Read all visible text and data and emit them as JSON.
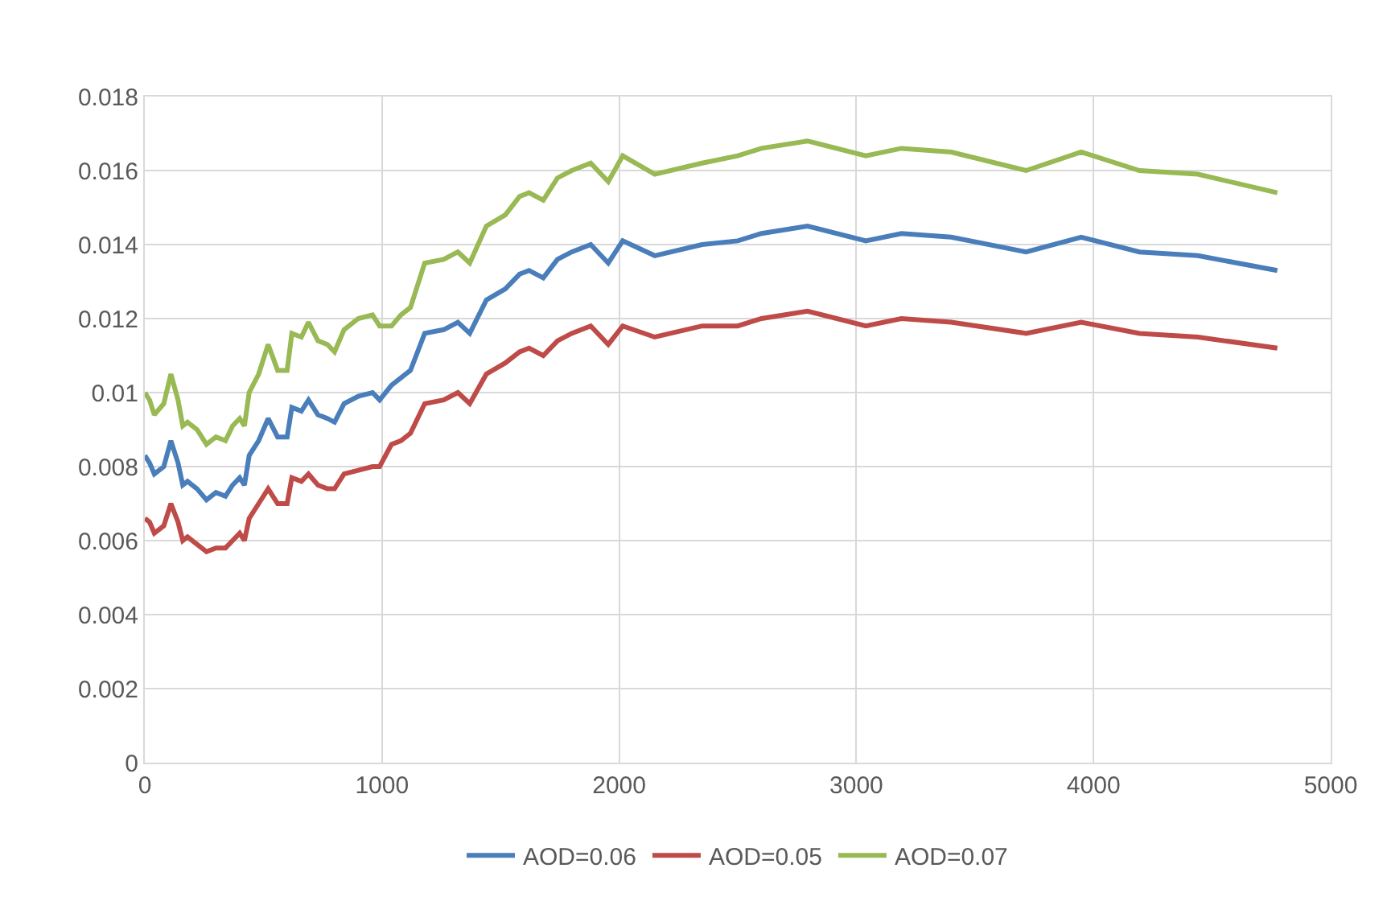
{
  "chart_data": {
    "type": "line",
    "xlim": [
      0,
      5000
    ],
    "xticks": [
      0,
      1000,
      2000,
      3000,
      4000,
      5000
    ],
    "ylim": [
      0,
      0.018
    ],
    "yticks": [
      {
        "value": 0,
        "label": "0"
      },
      {
        "value": 0.002,
        "label": "0.002"
      },
      {
        "value": 0.004,
        "label": "0.004"
      },
      {
        "value": 0.006,
        "label": "0.006"
      },
      {
        "value": 0.008,
        "label": "0.008"
      },
      {
        "value": 0.01,
        "label": "0.01"
      },
      {
        "value": 0.012,
        "label": "0.012"
      },
      {
        "value": 0.014,
        "label": "0.014"
      },
      {
        "value": 0.016,
        "label": "0.016"
      },
      {
        "value": 0.018,
        "label": "0.018"
      }
    ],
    "grid": true,
    "legend": "bottom",
    "marker": "none",
    "line_style": "solid",
    "x": [
      0,
      20,
      40,
      80,
      110,
      140,
      160,
      180,
      220,
      260,
      300,
      340,
      370,
      400,
      420,
      440,
      480,
      520,
      560,
      600,
      620,
      660,
      690,
      730,
      770,
      800,
      840,
      900,
      960,
      990,
      1040,
      1080,
      1120,
      1180,
      1260,
      1320,
      1370,
      1440,
      1520,
      1580,
      1620,
      1680,
      1740,
      1800,
      1880,
      1954,
      2015,
      2150,
      2350,
      2500,
      2600,
      2794,
      3040,
      3190,
      3400,
      3716,
      3948,
      4194,
      4440,
      4775
    ],
    "series": [
      {
        "name": "AOD=0.06",
        "color": "#4a7ebb",
        "values": [
          0.0083,
          0.0081,
          0.0078,
          0.008,
          0.0087,
          0.0081,
          0.0075,
          0.0076,
          0.0074,
          0.0071,
          0.0073,
          0.0072,
          0.0075,
          0.0077,
          0.0075,
          0.0083,
          0.0087,
          0.0093,
          0.0088,
          0.0088,
          0.0096,
          0.0095,
          0.0098,
          0.0094,
          0.0093,
          0.0092,
          0.0097,
          0.0099,
          0.01,
          0.0098,
          0.0102,
          0.0104,
          0.0106,
          0.0116,
          0.0117,
          0.0119,
          0.0116,
          0.0125,
          0.0128,
          0.0132,
          0.0133,
          0.0131,
          0.0136,
          0.0138,
          0.014,
          0.0135,
          0.0141,
          0.0137,
          0.014,
          0.0141,
          0.0143,
          0.0145,
          0.0141,
          0.0143,
          0.0142,
          0.0138,
          0.0142,
          0.0138,
          0.0137,
          0.0133
        ]
      },
      {
        "name": "AOD=0.05",
        "color": "#be4b48",
        "values": [
          0.0066,
          0.0065,
          0.0062,
          0.0064,
          0.007,
          0.0065,
          0.006,
          0.0061,
          0.0059,
          0.0057,
          0.0058,
          0.0058,
          0.006,
          0.0062,
          0.006,
          0.0066,
          0.007,
          0.0074,
          0.007,
          0.007,
          0.0077,
          0.0076,
          0.0078,
          0.0075,
          0.0074,
          0.0074,
          0.0078,
          0.0079,
          0.008,
          0.008,
          0.0086,
          0.0087,
          0.0089,
          0.0097,
          0.0098,
          0.01,
          0.0097,
          0.0105,
          0.0108,
          0.0111,
          0.0112,
          0.011,
          0.0114,
          0.0116,
          0.0118,
          0.0113,
          0.0118,
          0.0115,
          0.0118,
          0.0118,
          0.012,
          0.0122,
          0.0118,
          0.012,
          0.0119,
          0.0116,
          0.0119,
          0.0116,
          0.0115,
          0.0112
        ]
      },
      {
        "name": "AOD=0.07",
        "color": "#98b954",
        "values": [
          0.01,
          0.0098,
          0.0094,
          0.0097,
          0.0105,
          0.0098,
          0.0091,
          0.0092,
          0.009,
          0.0086,
          0.0088,
          0.0087,
          0.0091,
          0.0093,
          0.0091,
          0.01,
          0.0105,
          0.0113,
          0.0106,
          0.0106,
          0.0116,
          0.0115,
          0.0119,
          0.0114,
          0.0113,
          0.0111,
          0.0117,
          0.012,
          0.0121,
          0.0118,
          0.0118,
          0.0121,
          0.0123,
          0.0135,
          0.0136,
          0.0138,
          0.0135,
          0.0145,
          0.0148,
          0.0153,
          0.0154,
          0.0152,
          0.0158,
          0.016,
          0.0162,
          0.0157,
          0.0164,
          0.0159,
          0.0162,
          0.0164,
          0.0166,
          0.0168,
          0.0164,
          0.0166,
          0.0165,
          0.016,
          0.0165,
          0.016,
          0.0159,
          0.0154
        ]
      }
    ]
  }
}
